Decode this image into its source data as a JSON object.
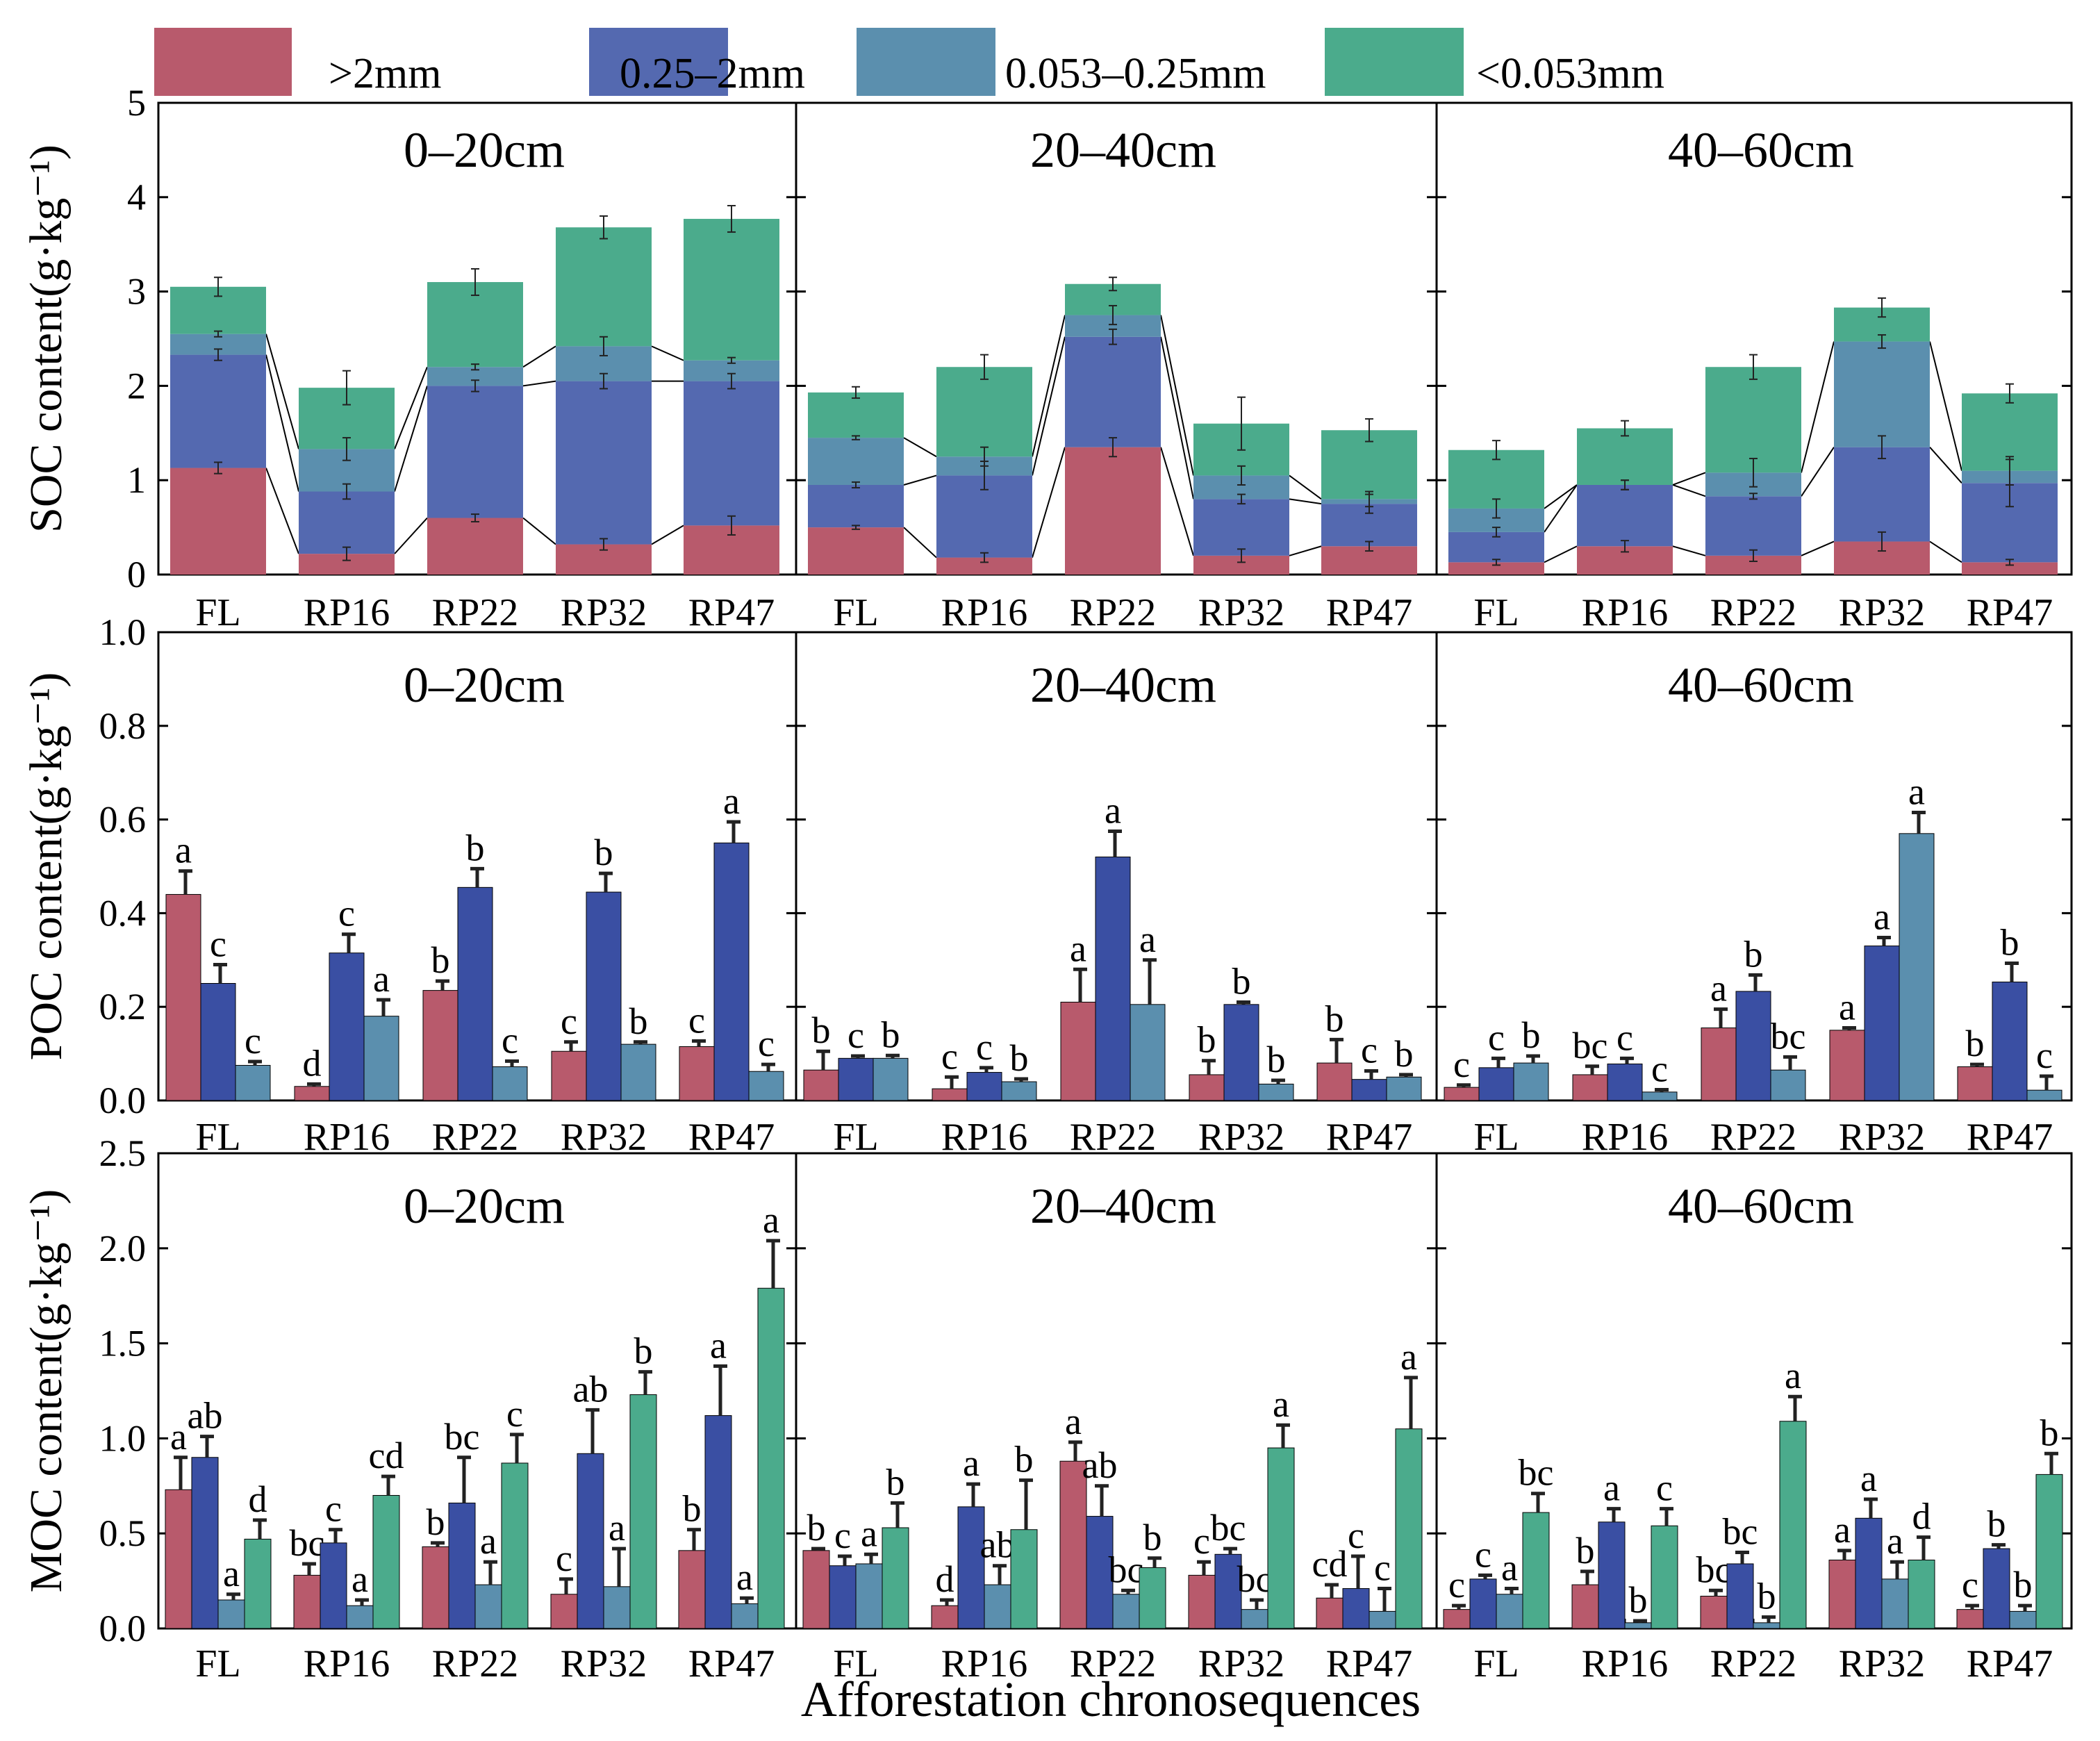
{
  "chart_data": {
    "type": "bar",
    "colors": {
      ">2mm": "#b85a6c",
      "0.25-2mm": "#5469b0",
      "0.053-0.25mm": "#5b8fae",
      "<0.053mm": "#4bab8c"
    },
    "dark_colors": {
      "0.25-2mm": "#3a4fa3",
      "0.053-0.25mm": "#5b8fae"
    },
    "legend": {
      "location": "top",
      "entries": [
        {
          "key": ">2mm",
          "label": ">2mm"
        },
        {
          "key": "0.25-2mm",
          "label": "0.25–2mm"
        },
        {
          "key": "0.053-0.25mm",
          "label": "0.053–0.25mm"
        },
        {
          "key": "<0.053mm",
          "label": "<0.053mm"
        }
      ]
    },
    "xlabel": "Afforestation chronosequences",
    "categories": [
      "FL",
      "RP16",
      "RP22",
      "RP32",
      "RP47"
    ],
    "depths": [
      "0–20cm",
      "20–40cm",
      "40–60cm"
    ],
    "rows": [
      {
        "kind": "stacked",
        "ylabel": "SOC content(g·kg⁻¹)",
        "ylim": [
          0,
          5
        ],
        "yticks": [
          "0",
          "1",
          "2",
          "3",
          "4",
          "5"
        ],
        "series_keys": [
          ">2mm",
          "0.25-2mm",
          "0.053-0.25mm",
          "<0.053mm"
        ],
        "panels": [
          {
            "cum": [
              [
                1.13,
                2.33,
                2.55,
                3.05
              ],
              [
                0.22,
                0.88,
                1.33,
                1.98
              ],
              [
                0.6,
                2.0,
                2.2,
                3.1
              ],
              [
                0.32,
                2.05,
                2.42,
                3.68
              ],
              [
                0.52,
                2.05,
                2.27,
                3.77
              ]
            ],
            "err": [
              [
                0.06,
                0.06,
                0.03,
                0.1
              ],
              [
                0.07,
                0.08,
                0.12,
                0.18
              ],
              [
                0.04,
                0.06,
                0.03,
                0.14
              ],
              [
                0.06,
                0.08,
                0.1,
                0.12
              ],
              [
                0.1,
                0.08,
                0.03,
                0.14
              ]
            ]
          },
          {
            "cum": [
              [
                0.5,
                0.95,
                1.45,
                1.93
              ],
              [
                0.18,
                1.05,
                1.25,
                2.2
              ],
              [
                1.35,
                2.52,
                2.75,
                3.08
              ],
              [
                0.2,
                0.8,
                1.05,
                1.6
              ],
              [
                0.3,
                0.75,
                0.8,
                1.53
              ]
            ],
            "err": [
              [
                0.02,
                0.03,
                0.02,
                0.06
              ],
              [
                0.05,
                0.15,
                0.1,
                0.13
              ],
              [
                0.1,
                0.08,
                0.1,
                0.07
              ],
              [
                0.07,
                0.05,
                0.1,
                0.28
              ],
              [
                0.05,
                0.1,
                0.08,
                0.12
              ]
            ]
          },
          {
            "cum": [
              [
                0.13,
                0.45,
                0.7,
                1.32
              ],
              [
                0.3,
                0.95,
                0.95,
                1.55
              ],
              [
                0.2,
                0.83,
                1.08,
                2.2
              ],
              [
                0.35,
                1.35,
                2.47,
                2.83
              ],
              [
                0.13,
                0.97,
                1.1,
                1.92
              ]
            ],
            "err": [
              [
                0.03,
                0.05,
                0.1,
                0.1
              ],
              [
                0.06,
                0.05,
                0.05,
                0.08
              ],
              [
                0.06,
                0.03,
                0.15,
                0.13
              ],
              [
                0.1,
                0.12,
                0.07,
                0.1
              ],
              [
                0.03,
                0.25,
                0.15,
                0.1
              ]
            ]
          }
        ]
      },
      {
        "kind": "grouped",
        "ylabel": "POC content(g·kg⁻¹)",
        "ylim": [
          0,
          1.0
        ],
        "yticks": [
          "0.0",
          "0.2",
          "0.4",
          "0.6",
          "0.8",
          "1.0"
        ],
        "series_keys": [
          ">2mm",
          "0.25-2mm",
          "0.053-0.25mm"
        ],
        "panels": [
          {
            "values": [
              [
                0.44,
                0.25,
                0.075
              ],
              [
                0.03,
                0.315,
                0.18
              ],
              [
                0.235,
                0.455,
                0.072
              ],
              [
                0.105,
                0.445,
                0.12
              ],
              [
                0.115,
                0.55,
                0.062
              ]
            ],
            "err": [
              [
                0.05,
                0.04,
                0.008
              ],
              [
                0.005,
                0.04,
                0.035
              ],
              [
                0.02,
                0.04,
                0.012
              ],
              [
                0.02,
                0.04,
                0.005
              ],
              [
                0.012,
                0.045,
                0.015
              ]
            ],
            "letters": [
              [
                "a",
                "c",
                "c"
              ],
              [
                "d",
                "c",
                "a"
              ],
              [
                "b",
                "b",
                "c"
              ],
              [
                "c",
                "b",
                "b"
              ],
              [
                "c",
                "a",
                "c"
              ]
            ]
          },
          {
            "values": [
              [
                0.065,
                0.09,
                0.09
              ],
              [
                0.025,
                0.06,
                0.04
              ],
              [
                0.21,
                0.52,
                0.205
              ],
              [
                0.055,
                0.205,
                0.035
              ],
              [
                0.08,
                0.045,
                0.05
              ]
            ],
            "err": [
              [
                0.04,
                0.005,
                0.006
              ],
              [
                0.025,
                0.01,
                0.006
              ],
              [
                0.07,
                0.055,
                0.095
              ],
              [
                0.03,
                0.005,
                0.008
              ],
              [
                0.05,
                0.018,
                0.005
              ]
            ],
            "letters": [
              [
                "b",
                "c",
                "b"
              ],
              [
                "c",
                "c",
                "b"
              ],
              [
                "a",
                "a",
                "a"
              ],
              [
                "b",
                "b",
                "b"
              ],
              [
                "b",
                "c",
                "b"
              ]
            ]
          },
          {
            "values": [
              [
                0.028,
                0.07,
                0.08
              ],
              [
                0.055,
                0.078,
                0.018
              ],
              [
                0.155,
                0.233,
                0.065
              ],
              [
                0.15,
                0.33,
                0.57
              ],
              [
                0.072,
                0.253,
                0.022
              ]
            ],
            "err": [
              [
                0.005,
                0.02,
                0.015
              ],
              [
                0.018,
                0.012,
                0.005
              ],
              [
                0.04,
                0.035,
                0.028
              ],
              [
                0.005,
                0.018,
                0.045
              ],
              [
                0.005,
                0.04,
                0.03
              ]
            ],
            "letters": [
              [
                "c",
                "c",
                "b"
              ],
              [
                "bc",
                "c",
                "c"
              ],
              [
                "a",
                "b",
                "bc"
              ],
              [
                "a",
                "a",
                "a"
              ],
              [
                "b",
                "b",
                "c"
              ]
            ]
          }
        ]
      },
      {
        "kind": "grouped",
        "ylabel": "MOC content(g·kg⁻¹)",
        "ylim": [
          0,
          2.5
        ],
        "yticks": [
          "0.0",
          "0.5",
          "1.0",
          "1.5",
          "2.0",
          "2.5"
        ],
        "series_keys": [
          ">2mm",
          "0.25-2mm",
          "0.053-0.25mm",
          "<0.053mm"
        ],
        "panels": [
          {
            "values": [
              [
                0.73,
                0.9,
                0.15,
                0.47
              ],
              [
                0.28,
                0.45,
                0.12,
                0.7
              ],
              [
                0.43,
                0.66,
                0.23,
                0.87
              ],
              [
                0.18,
                0.92,
                0.22,
                1.23
              ],
              [
                0.41,
                1.12,
                0.13,
                1.79
              ]
            ],
            "err": [
              [
                0.17,
                0.11,
                0.03,
                0.1
              ],
              [
                0.06,
                0.07,
                0.03,
                0.1
              ],
              [
                0.02,
                0.24,
                0.12,
                0.15
              ],
              [
                0.08,
                0.23,
                0.2,
                0.12
              ],
              [
                0.11,
                0.26,
                0.03,
                0.25
              ]
            ],
            "letters": [
              [
                "a",
                "ab",
                "a",
                "d"
              ],
              [
                "bc",
                "c",
                "a",
                "cd"
              ],
              [
                "b",
                "bc",
                "a",
                "c"
              ],
              [
                "c",
                "ab",
                "a",
                "b"
              ],
              [
                "b",
                "a",
                "a",
                "a"
              ]
            ]
          },
          {
            "values": [
              [
                0.41,
                0.33,
                0.34,
                0.53
              ],
              [
                0.12,
                0.64,
                0.23,
                0.52
              ],
              [
                0.88,
                0.59,
                0.18,
                0.32
              ],
              [
                0.28,
                0.39,
                0.1,
                0.95
              ],
              [
                0.16,
                0.21,
                0.09,
                1.05
              ]
            ],
            "err": [
              [
                0.01,
                0.05,
                0.05,
                0.13
              ],
              [
                0.03,
                0.12,
                0.1,
                0.26
              ],
              [
                0.1,
                0.16,
                0.02,
                0.05
              ],
              [
                0.07,
                0.03,
                0.05,
                0.12
              ],
              [
                0.07,
                0.17,
                0.12,
                0.27
              ]
            ],
            "letters": [
              [
                "b",
                "c",
                "a",
                "b"
              ],
              [
                "d",
                "a",
                "ab",
                "b"
              ],
              [
                "a",
                "ab",
                "bc",
                "b"
              ],
              [
                "c",
                "bc",
                "bc",
                "a"
              ],
              [
                "cd",
                "c",
                "c",
                "a"
              ]
            ]
          },
          {
            "values": [
              [
                0.1,
                0.26,
                0.18,
                0.61
              ],
              [
                0.23,
                0.56,
                0.03,
                0.54
              ],
              [
                0.17,
                0.34,
                0.03,
                1.09
              ],
              [
                0.36,
                0.58,
                0.26,
                0.36
              ],
              [
                0.1,
                0.42,
                0.09,
                0.81
              ]
            ],
            "err": [
              [
                0.02,
                0.02,
                0.03,
                0.1
              ],
              [
                0.07,
                0.07,
                0.01,
                0.09
              ],
              [
                0.03,
                0.06,
                0.03,
                0.13
              ],
              [
                0.05,
                0.1,
                0.09,
                0.12
              ],
              [
                0.02,
                0.02,
                0.03,
                0.11
              ]
            ],
            "letters": [
              [
                "c",
                "c",
                "a",
                "bc"
              ],
              [
                "b",
                "a",
                "b",
                "c"
              ],
              [
                "bc",
                "bc",
                "b",
                "a"
              ],
              [
                "a",
                "a",
                "a",
                "d"
              ],
              [
                "c",
                "b",
                "b",
                "b"
              ]
            ]
          }
        ]
      }
    ]
  }
}
